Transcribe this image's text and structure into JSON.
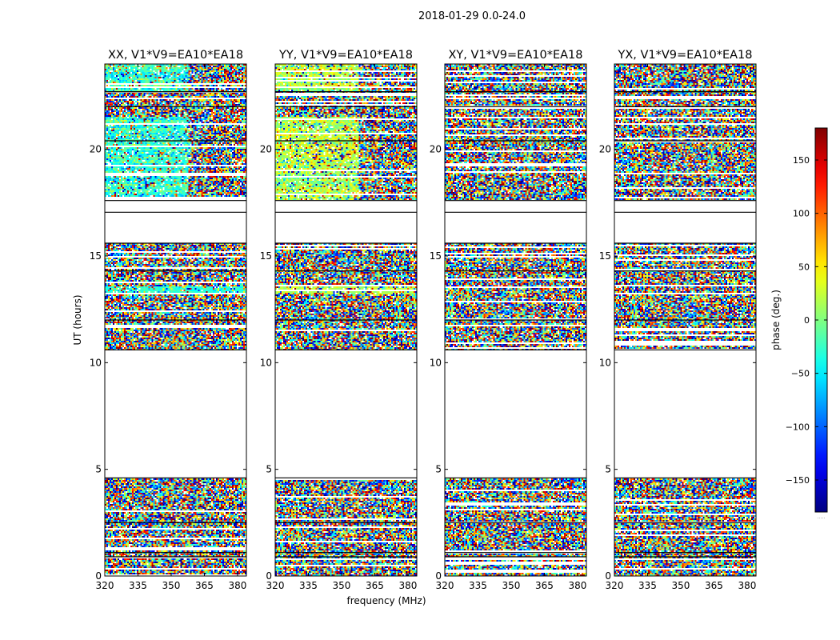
{
  "chart_data": {
    "type": "heatmap",
    "title": "2018-01-29 0.0-24.0",
    "xlabel": "frequency (MHz)",
    "ylabel": "UT (hours)",
    "xlim": [
      320,
      384
    ],
    "ylim": [
      0,
      24
    ],
    "xticks": [
      320,
      335,
      350,
      365,
      380
    ],
    "yticks": [
      0,
      5,
      10,
      15,
      20
    ],
    "panels": [
      {
        "name": "XX",
        "title": "XX, V1*V9=EA10*EA18",
        "coherent_phase": -30
      },
      {
        "name": "YY",
        "title": "YY, V1*V9=EA10*EA18",
        "coherent_phase": 20
      },
      {
        "name": "XY",
        "title": "XY, V1*V9=EA10*EA18",
        "coherent_phase": null
      },
      {
        "name": "YX",
        "title": "YX, V1*V9=EA10*EA18",
        "coherent_phase": null
      }
    ],
    "data_ranges_ut": [
      [
        0.0,
        4.6
      ],
      [
        10.6,
        15.6
      ],
      [
        17.6,
        22.7
      ],
      [
        22.7,
        24.0
      ]
    ],
    "empty_ranges_ut": [
      [
        4.6,
        10.6
      ],
      [
        15.6,
        17.6
      ]
    ],
    "colorbar": {
      "label": "phase (deg.)",
      "range": [
        -180,
        180
      ],
      "ticks": [
        -150,
        -100,
        -50,
        0,
        50,
        100,
        150
      ],
      "colormap": "jet",
      "under_label": "....."
    }
  }
}
